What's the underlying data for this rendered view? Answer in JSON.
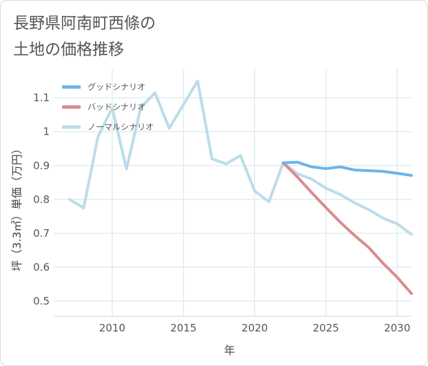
{
  "title_lines": [
    "長野県阿南町西條の",
    "土地の価格推移"
  ],
  "chart_data": {
    "type": "line",
    "title": "長野県阿南町西條の土地の価格推移",
    "xlabel": "年",
    "ylabel": "坪（3.3㎡）単価（万円）",
    "xlim": [
      2005.9,
      2031.0
    ],
    "ylim": [
      0.455,
      1.185
    ],
    "xticks": [
      2010,
      2015,
      2020,
      2025,
      2030
    ],
    "yticks": [
      0.5,
      0.6,
      0.7,
      0.8,
      0.9,
      1,
      1.1
    ],
    "ytick_labels": [
      "0.5",
      "0.6",
      "0.7",
      "0.8",
      "0.9",
      "1",
      "1.1"
    ],
    "grid": true,
    "legend_position": "top-left",
    "series": [
      {
        "name": "グッドシナリオ",
        "color": "#6cb4ea",
        "x": [
          2022,
          2023,
          2024,
          2025,
          2026,
          2027,
          2028,
          2029,
          2030,
          2031
        ],
        "y": [
          0.908,
          0.91,
          0.896,
          0.891,
          0.896,
          0.887,
          0.885,
          0.883,
          0.877,
          0.871
        ]
      },
      {
        "name": "バッドシナリオ",
        "color": "#d98b8f",
        "x": [
          2022,
          2023,
          2024,
          2025,
          2026,
          2027,
          2028,
          2029,
          2030,
          2031
        ],
        "y": [
          0.908,
          0.866,
          0.82,
          0.776,
          0.733,
          0.694,
          0.658,
          0.612,
          0.57,
          0.522
        ]
      },
      {
        "name": "ノーマルシナリオ",
        "color": "#bcdcea",
        "x": [
          2007,
          2008,
          2009,
          2010,
          2011,
          2012,
          2013,
          2014,
          2015,
          2016,
          2017,
          2018,
          2019,
          2020,
          2021,
          2022,
          2023,
          2024,
          2025,
          2026,
          2027,
          2028,
          2029,
          2030,
          2031
        ],
        "y": [
          0.8,
          0.775,
          0.985,
          1.07,
          0.89,
          1.07,
          1.115,
          1.01,
          1.08,
          1.15,
          0.92,
          0.905,
          0.93,
          0.825,
          0.793,
          0.908,
          0.876,
          0.86,
          0.833,
          0.815,
          0.79,
          0.77,
          0.745,
          0.728,
          0.697
        ]
      }
    ]
  }
}
